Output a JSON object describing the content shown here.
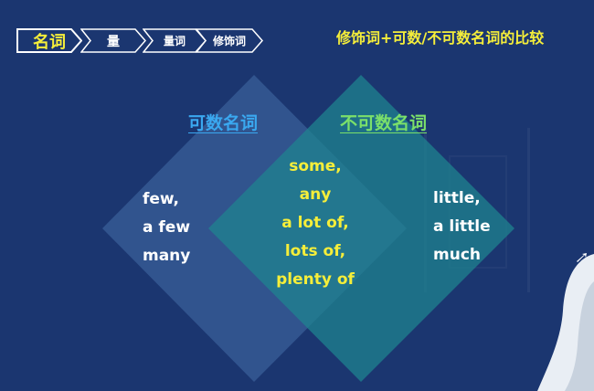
{
  "breadcrumb": [
    "名词",
    "量",
    "量词",
    "修饰词"
  ],
  "heading": "修饰词+可数/不可数名词的比较",
  "venn": {
    "countable_label": "可数名词",
    "uncountable_label": "不可数名词",
    "countable_only": [
      "few,",
      "a few",
      "many"
    ],
    "both": [
      "some,",
      "any",
      "a lot of,",
      "lots of,",
      "plenty of"
    ],
    "uncountable_only": [
      "little,",
      "a little",
      "much"
    ]
  },
  "colors": {
    "background": "#1b3670",
    "highlight": "#f5ee3a",
    "countable": "#3aa8f0",
    "uncountable": "#7be06a"
  }
}
